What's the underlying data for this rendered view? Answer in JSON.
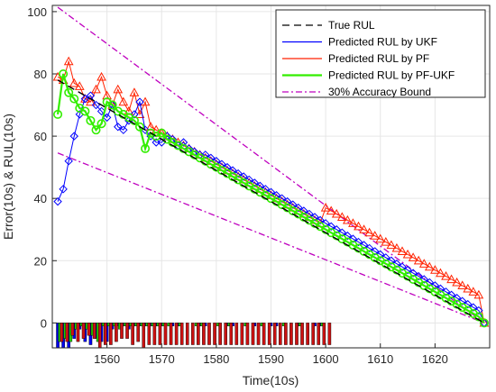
{
  "chart_data": {
    "type": "line",
    "xlabel": "Time(10s)",
    "ylabel": "Error(10s) & RUL(10s)",
    "xlim": [
      1550,
      1630
    ],
    "ylim": [
      -8,
      102
    ],
    "xticks": [
      "1560",
      "1570",
      "1580",
      "1590",
      "1600",
      "1610",
      "1620"
    ],
    "yticks": [
      "0",
      "20",
      "40",
      "60",
      "80",
      "100"
    ],
    "grid": true,
    "legend_position": "top-right",
    "x_start": 1551,
    "x_end": 1629,
    "series": [
      {
        "name": "True RUL",
        "style": "dashed",
        "color": "#000000",
        "x": [
          1551,
          1629
        ],
        "y": [
          78,
          0
        ]
      },
      {
        "name": "Predicted RUL by UKF",
        "style": "solid-diamond",
        "color": "#0000ff",
        "y": [
          39,
          43,
          52,
          60,
          67,
          72,
          73,
          70,
          68,
          66,
          70,
          63,
          62,
          65,
          67,
          71,
          62,
          60,
          58,
          58,
          60,
          59,
          57,
          58,
          56,
          55,
          54,
          54,
          53,
          52,
          51,
          50,
          49,
          48,
          47,
          46,
          45,
          44,
          43,
          42,
          41,
          40,
          39,
          38,
          37,
          36,
          35,
          34,
          33,
          32,
          31,
          30,
          29,
          28,
          27,
          26,
          25,
          24,
          23,
          22,
          21,
          20,
          19,
          18,
          17,
          16,
          15,
          14,
          13,
          12,
          11,
          10,
          9,
          8,
          7,
          6,
          5,
          4,
          0
        ]
      },
      {
        "name": "Predicted RUL by PF",
        "style": "solid-triangle",
        "color": "#ff2200",
        "y": [
          79,
          78,
          84,
          77,
          76,
          72,
          71,
          75,
          79,
          73,
          70,
          75,
          71,
          68,
          74,
          67,
          71,
          63,
          62,
          61,
          60,
          59,
          58,
          57,
          56,
          55,
          54,
          53,
          52,
          51,
          50,
          49,
          48,
          47,
          46,
          45,
          44,
          43,
          42,
          41,
          40,
          39,
          38,
          37,
          36,
          35,
          34,
          33,
          32,
          37,
          36,
          35,
          34,
          33,
          32,
          31,
          30,
          29,
          28,
          27,
          26,
          25,
          24,
          23,
          22,
          21,
          20,
          19,
          18,
          17,
          16,
          15,
          14,
          13,
          12,
          11,
          10,
          9,
          0
        ]
      },
      {
        "name": "Predicted RUL by PF-UKF",
        "style": "solid-circle",
        "color": "#33ee00",
        "y": [
          67,
          80,
          74,
          72,
          69,
          68,
          65,
          62,
          64,
          71,
          70,
          68,
          67,
          66,
          65,
          63,
          56,
          61,
          60,
          61,
          59,
          58,
          57,
          56,
          55,
          54,
          53,
          52,
          51,
          50,
          49,
          48,
          47,
          46,
          45,
          44,
          43,
          42,
          41,
          40,
          39,
          38,
          37,
          36,
          35,
          34,
          33,
          32,
          31,
          30,
          29,
          28,
          27,
          26,
          25,
          24,
          23,
          22,
          21,
          20,
          19,
          18,
          17,
          16,
          15,
          14,
          13,
          12,
          11,
          10,
          9,
          8,
          7,
          6,
          5,
          4,
          3,
          2,
          0
        ]
      },
      {
        "name": "30% Accuracy Bound",
        "style": "dash-dot",
        "color": "#bf00bf",
        "bounds": [
          {
            "x": [
              1551,
              1629
            ],
            "y": [
              101.4,
              0
            ]
          },
          {
            "x": [
              1551,
              1629
            ],
            "y": [
              54.6,
              0
            ]
          }
        ]
      }
    ],
    "error_bars": {
      "ukf": [
        -8,
        -8,
        -8,
        -5,
        -2,
        -6,
        -7,
        -5,
        -6,
        -6,
        -2,
        -1,
        -1,
        -2,
        -1,
        -1,
        -1,
        -1,
        -1,
        -1,
        0,
        -1,
        -1,
        0,
        0,
        0,
        -1,
        -1,
        0,
        0,
        0,
        -1,
        -1,
        0,
        0,
        0,
        -1,
        0,
        0,
        -1,
        -1,
        0,
        0,
        0,
        -1,
        0,
        0,
        -1,
        -1
      ],
      "pf": [
        -6,
        -6,
        -4,
        -6,
        -5,
        -4,
        -5,
        -8,
        -7,
        -7,
        -6,
        -5,
        -5,
        -7,
        -6,
        -8,
        -7,
        -7,
        -7,
        -7,
        -7,
        -7,
        -7,
        -7,
        -7,
        -7,
        -7,
        -7,
        -7,
        -7,
        -7,
        -7,
        -7,
        -7,
        -7,
        -7,
        -7,
        -7,
        -7,
        -7,
        -7,
        -7,
        -7,
        -7,
        -7,
        -7,
        -7,
        -7,
        -7,
        -7
      ],
      "pfukf": [
        -6,
        -5,
        -6,
        -2,
        -1,
        -2,
        -4,
        -6,
        -1,
        -1,
        -1,
        -2,
        -1,
        -1,
        -1,
        -1,
        -1,
        -1,
        -1,
        -1,
        -1,
        0,
        -1,
        0,
        0,
        -1,
        -1,
        0,
        0,
        -1,
        0,
        -1,
        0,
        0,
        -1,
        0,
        0,
        -1,
        0,
        0,
        0,
        -1,
        0,
        0,
        -1,
        0,
        0,
        0,
        -1
      ]
    }
  },
  "legend_items": [
    {
      "label": "True RUL",
      "color": "#000000",
      "style": "dashed",
      "marker": "none"
    },
    {
      "label": "Predicted RUL by UKF",
      "color": "#0000ff",
      "style": "solid",
      "marker": "diamond"
    },
    {
      "label": "Predicted RUL by PF",
      "color": "#ff2200",
      "style": "solid",
      "marker": "triangle"
    },
    {
      "label": "Predicted RUL by PF-UKF",
      "color": "#33ee00",
      "style": "solid",
      "marker": "circle"
    },
    {
      "label": "30% Accuracy Bound",
      "color": "#bf00bf",
      "style": "dashdot",
      "marker": "none"
    }
  ]
}
